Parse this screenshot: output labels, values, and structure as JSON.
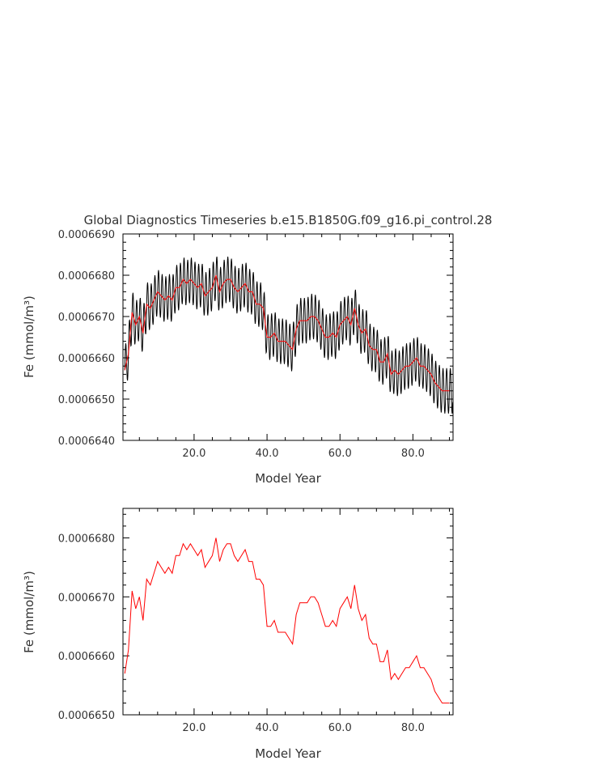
{
  "figure": {
    "title": "Global Diagnostics Timeseries b.e15.B1850G.f09_g16.pi_control.28"
  },
  "colors": {
    "monthly_series": "#000000",
    "annual_series": "#ff0000",
    "axes": "#000000",
    "text": "#333333"
  },
  "chart_data": [
    {
      "type": "line",
      "title": "Global Diagnostics Timeseries b.e15.B1850G.f09_g16.pi_control.28",
      "xlabel": "Model Year",
      "ylabel": "Fe (mmol/m³)",
      "xlim": [
        0.5,
        91
      ],
      "ylim": [
        0.000664,
        0.000669
      ],
      "x_ticks": [
        20,
        40,
        60,
        80
      ],
      "x_tick_labels": [
        "20.0",
        "40.0",
        "60.0",
        "80.0"
      ],
      "y_ticks": [
        0.000664,
        0.000665,
        0.000666,
        0.000667,
        0.000668,
        0.000669
      ],
      "y_tick_labels": [
        "0.0006640",
        "0.0006650",
        "0.0006660",
        "0.0006670",
        "0.0006680",
        "0.0006690"
      ],
      "grid": false,
      "legend": "none",
      "series": [
        {
          "kind": "monthly",
          "color": "#000000",
          "seasonal_amplitude": 5.5e-07,
          "x": [
            1,
            2,
            3,
            4,
            5,
            6,
            7,
            8,
            9,
            10,
            11,
            12,
            13,
            14,
            15,
            16,
            17,
            18,
            19,
            20,
            21,
            22,
            23,
            24,
            25,
            26,
            27,
            28,
            29,
            30,
            31,
            32,
            33,
            34,
            35,
            36,
            37,
            38,
            39,
            40,
            41,
            42,
            43,
            44,
            45,
            46,
            47,
            48,
            49,
            50,
            51,
            52,
            53,
            54,
            55,
            56,
            57,
            58,
            59,
            60,
            61,
            62,
            63,
            64,
            65,
            66,
            67,
            68,
            69,
            70,
            71,
            72,
            73,
            74,
            75,
            76,
            77,
            78,
            79,
            80,
            81,
            82,
            83,
            84,
            85,
            86,
            87,
            88,
            89,
            90
          ],
          "values": [
            0.0006657,
            0.0006661,
            0.0006671,
            0.0006668,
            0.000667,
            0.0006666,
            0.0006673,
            0.0006672,
            0.0006674,
            0.0006676,
            0.0006675,
            0.0006674,
            0.0006675,
            0.0006674,
            0.0006677,
            0.0006677,
            0.0006679,
            0.0006678,
            0.0006679,
            0.0006678,
            0.0006677,
            0.0006678,
            0.0006675,
            0.0006676,
            0.0006677,
            0.000668,
            0.0006676,
            0.0006678,
            0.0006679,
            0.0006679,
            0.0006677,
            0.0006676,
            0.0006677,
            0.0006678,
            0.0006676,
            0.0006676,
            0.0006673,
            0.0006673,
            0.0006672,
            0.0006665,
            0.0006665,
            0.0006666,
            0.0006664,
            0.0006664,
            0.0006664,
            0.0006663,
            0.0006662,
            0.0006667,
            0.0006669,
            0.0006669,
            0.0006669,
            0.000667,
            0.000667,
            0.0006669,
            0.0006667,
            0.0006665,
            0.0006665,
            0.0006666,
            0.0006665,
            0.0006668,
            0.0006669,
            0.000667,
            0.0006668,
            0.0006672,
            0.0006668,
            0.0006666,
            0.0006667,
            0.0006663,
            0.0006662,
            0.0006662,
            0.0006659,
            0.0006659,
            0.0006661,
            0.0006656,
            0.0006657,
            0.0006656,
            0.0006657,
            0.0006658,
            0.0006658,
            0.0006659,
            0.000666,
            0.0006658,
            0.0006658,
            0.0006657,
            0.0006656,
            0.0006654,
            0.0006653,
            0.0006652,
            0.0006652,
            0.0006652
          ]
        },
        {
          "kind": "annual_mean",
          "color": "#ff0000",
          "x": [
            1,
            2,
            3,
            4,
            5,
            6,
            7,
            8,
            9,
            10,
            11,
            12,
            13,
            14,
            15,
            16,
            17,
            18,
            19,
            20,
            21,
            22,
            23,
            24,
            25,
            26,
            27,
            28,
            29,
            30,
            31,
            32,
            33,
            34,
            35,
            36,
            37,
            38,
            39,
            40,
            41,
            42,
            43,
            44,
            45,
            46,
            47,
            48,
            49,
            50,
            51,
            52,
            53,
            54,
            55,
            56,
            57,
            58,
            59,
            60,
            61,
            62,
            63,
            64,
            65,
            66,
            67,
            68,
            69,
            70,
            71,
            72,
            73,
            74,
            75,
            76,
            77,
            78,
            79,
            80,
            81,
            82,
            83,
            84,
            85,
            86,
            87,
            88,
            89,
            90
          ],
          "values": [
            0.0006657,
            0.0006661,
            0.0006671,
            0.0006668,
            0.000667,
            0.0006666,
            0.0006673,
            0.0006672,
            0.0006674,
            0.0006676,
            0.0006675,
            0.0006674,
            0.0006675,
            0.0006674,
            0.0006677,
            0.0006677,
            0.0006679,
            0.0006678,
            0.0006679,
            0.0006678,
            0.0006677,
            0.0006678,
            0.0006675,
            0.0006676,
            0.0006677,
            0.000668,
            0.0006676,
            0.0006678,
            0.0006679,
            0.0006679,
            0.0006677,
            0.0006676,
            0.0006677,
            0.0006678,
            0.0006676,
            0.0006676,
            0.0006673,
            0.0006673,
            0.0006672,
            0.0006665,
            0.0006665,
            0.0006666,
            0.0006664,
            0.0006664,
            0.0006664,
            0.0006663,
            0.0006662,
            0.0006667,
            0.0006669,
            0.0006669,
            0.0006669,
            0.000667,
            0.000667,
            0.0006669,
            0.0006667,
            0.0006665,
            0.0006665,
            0.0006666,
            0.0006665,
            0.0006668,
            0.0006669,
            0.000667,
            0.0006668,
            0.0006672,
            0.0006668,
            0.0006666,
            0.0006667,
            0.0006663,
            0.0006662,
            0.0006662,
            0.0006659,
            0.0006659,
            0.0006661,
            0.0006656,
            0.0006657,
            0.0006656,
            0.0006657,
            0.0006658,
            0.0006658,
            0.0006659,
            0.000666,
            0.0006658,
            0.0006658,
            0.0006657,
            0.0006656,
            0.0006654,
            0.0006653,
            0.0006652,
            0.0006652,
            0.0006652
          ]
        }
      ]
    },
    {
      "type": "line",
      "title": "",
      "xlabel": "Model Year",
      "ylabel": "Fe (mmol/m³)",
      "xlim": [
        0.5,
        91
      ],
      "ylim": [
        0.000665,
        0.0006685
      ],
      "x_ticks": [
        20,
        40,
        60,
        80
      ],
      "x_tick_labels": [
        "20.0",
        "40.0",
        "60.0",
        "80.0"
      ],
      "y_ticks": [
        0.000665,
        0.000666,
        0.000667,
        0.000668
      ],
      "y_tick_labels": [
        "0.0006650",
        "0.0006660",
        "0.0006670",
        "0.0006680"
      ],
      "grid": false,
      "legend": "none",
      "series": [
        {
          "kind": "annual_mean",
          "color": "#ff0000",
          "x": [
            1,
            2,
            3,
            4,
            5,
            6,
            7,
            8,
            9,
            10,
            11,
            12,
            13,
            14,
            15,
            16,
            17,
            18,
            19,
            20,
            21,
            22,
            23,
            24,
            25,
            26,
            27,
            28,
            29,
            30,
            31,
            32,
            33,
            34,
            35,
            36,
            37,
            38,
            39,
            40,
            41,
            42,
            43,
            44,
            45,
            46,
            47,
            48,
            49,
            50,
            51,
            52,
            53,
            54,
            55,
            56,
            57,
            58,
            59,
            60,
            61,
            62,
            63,
            64,
            65,
            66,
            67,
            68,
            69,
            70,
            71,
            72,
            73,
            74,
            75,
            76,
            77,
            78,
            79,
            80,
            81,
            82,
            83,
            84,
            85,
            86,
            87,
            88,
            89,
            90
          ],
          "values": [
            0.0006657,
            0.0006661,
            0.0006671,
            0.0006668,
            0.000667,
            0.0006666,
            0.0006673,
            0.0006672,
            0.0006674,
            0.0006676,
            0.0006675,
            0.0006674,
            0.0006675,
            0.0006674,
            0.0006677,
            0.0006677,
            0.0006679,
            0.0006678,
            0.0006679,
            0.0006678,
            0.0006677,
            0.0006678,
            0.0006675,
            0.0006676,
            0.0006677,
            0.000668,
            0.0006676,
            0.0006678,
            0.0006679,
            0.0006679,
            0.0006677,
            0.0006676,
            0.0006677,
            0.0006678,
            0.0006676,
            0.0006676,
            0.0006673,
            0.0006673,
            0.0006672,
            0.0006665,
            0.0006665,
            0.0006666,
            0.0006664,
            0.0006664,
            0.0006664,
            0.0006663,
            0.0006662,
            0.0006667,
            0.0006669,
            0.0006669,
            0.0006669,
            0.000667,
            0.000667,
            0.0006669,
            0.0006667,
            0.0006665,
            0.0006665,
            0.0006666,
            0.0006665,
            0.0006668,
            0.0006669,
            0.000667,
            0.0006668,
            0.0006672,
            0.0006668,
            0.0006666,
            0.0006667,
            0.0006663,
            0.0006662,
            0.0006662,
            0.0006659,
            0.0006659,
            0.0006661,
            0.0006656,
            0.0006657,
            0.0006656,
            0.0006657,
            0.0006658,
            0.0006658,
            0.0006659,
            0.000666,
            0.0006658,
            0.0006658,
            0.0006657,
            0.0006656,
            0.0006654,
            0.0006653,
            0.0006652,
            0.0006652,
            0.0006652
          ]
        }
      ]
    }
  ]
}
